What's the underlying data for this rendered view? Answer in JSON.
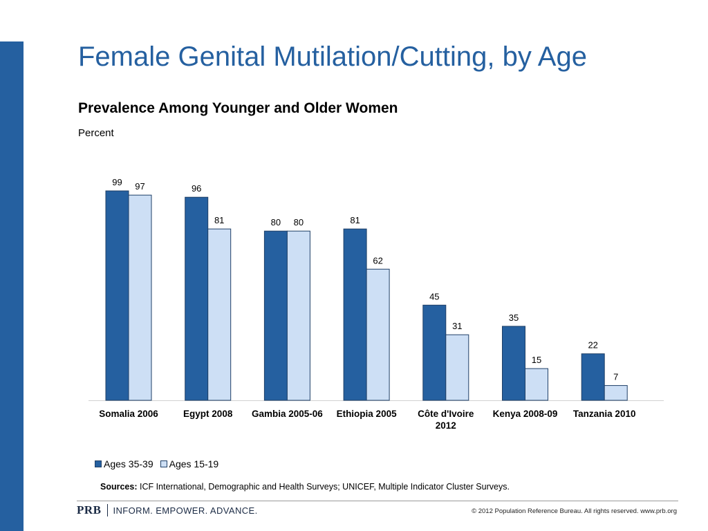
{
  "slide": {
    "title": "Female Genital Mutilation/Cutting, by Age",
    "subtitle": "Prevalence Among Younger and Older Women",
    "unit_label": "Percent",
    "sources_label": "Sources:",
    "sources_text": " ICF International, Demographic and Health Surveys; UNICEF, Multiple Indicator Cluster Surveys.",
    "footer_logo": "PRB",
    "footer_tagline": "INFORM. EMPOWER. ADVANCE.",
    "copyright": "© 2012 Population Reference Bureau. All rights reserved. www.prb.org"
  },
  "colors": {
    "accent": "#2560a0",
    "series_older": "#2560a0",
    "series_younger": "#cddff5",
    "bar_outline": "#1f3f66"
  },
  "chart_data": {
    "type": "bar",
    "title": "Prevalence Among Younger and Older Women",
    "xlabel": "",
    "ylabel": "Percent",
    "ylim": [
      0,
      100
    ],
    "legend_position": "bottom-left",
    "categories": [
      [
        "Somalia 2006"
      ],
      [
        "Egypt 2008"
      ],
      [
        "Gambia 2005-06"
      ],
      [
        "Ethiopia 2005"
      ],
      [
        "Côte d'Ivoire",
        "2012"
      ],
      [
        "Kenya 2008-09"
      ],
      [
        "Tanzania 2010"
      ]
    ],
    "series": [
      {
        "name": "Ages 35-39",
        "values": [
          99,
          96,
          80,
          81,
          45,
          35,
          22
        ]
      },
      {
        "name": "Ages 15-19",
        "values": [
          97,
          81,
          80,
          62,
          31,
          15,
          7
        ]
      }
    ]
  }
}
